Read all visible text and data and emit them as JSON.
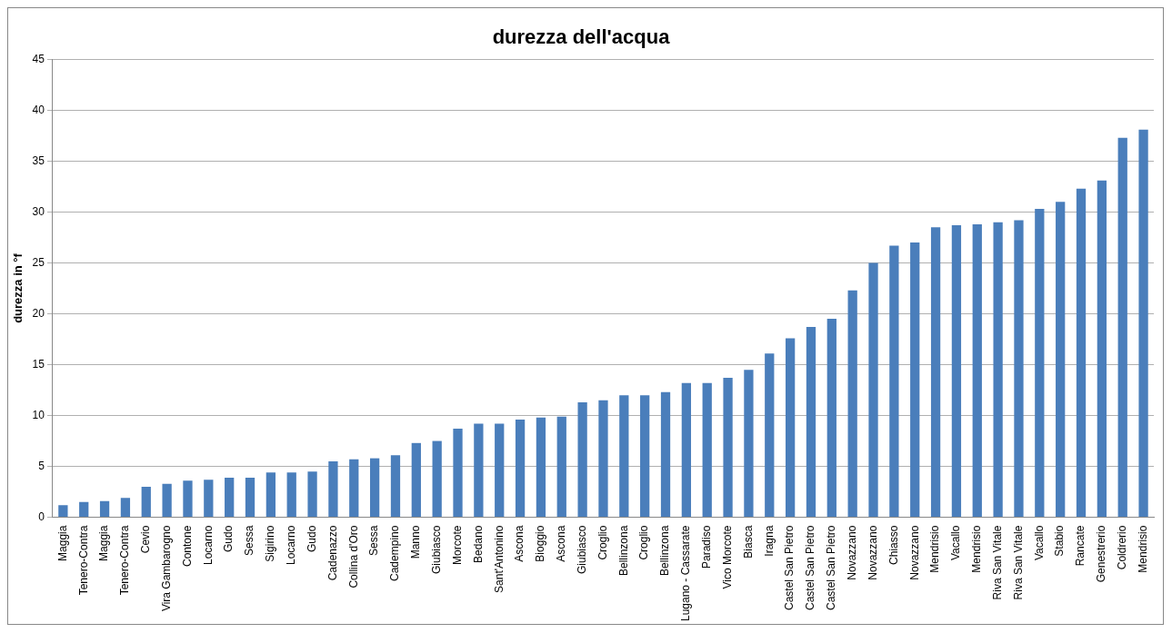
{
  "chart_data": {
    "type": "bar",
    "title": "durezza dell'acqua",
    "ylabel": "durezza in °f",
    "categories": [
      "Maggia",
      "Tenero-Contra",
      "Maggia",
      "Tenero-Contra",
      "Cevio",
      "Vira Gambarogno",
      "Contone",
      "Locarno",
      "Gudo",
      "Sessa",
      "Sigirino",
      "Locarno",
      "Gudo",
      "Cadenazzo",
      "Collina d'Oro",
      "Sessa",
      "Cadempino",
      "Manno",
      "Giubiasco",
      "Morcote",
      "Bedano",
      "Sant'Antonino",
      "Ascona",
      "Bioggio",
      "Ascona",
      "Giubiasco",
      "Croglio",
      "Bellinzona",
      "Croglio",
      "Bellinzona",
      "Lugano - Cassarate",
      "Paradiso",
      "Vico Morcote",
      "Biasca",
      "Iragna",
      "Castel San Pietro",
      "Castel San Pietro",
      "Castel San Pietro",
      "Novazzano",
      "Novazzano",
      "Chiasso",
      "Novazzano",
      "Mendrisio",
      "Vacallo",
      "Mendrisio",
      "Riva San Vitale",
      "Riva San Vitale",
      "Vacallo",
      "Stabio",
      "Rancate",
      "Genestrerio",
      "Coldrerio",
      "Mendrisio"
    ],
    "values": [
      1.2,
      1.5,
      1.6,
      1.9,
      3.0,
      3.3,
      3.6,
      3.7,
      3.9,
      3.9,
      4.4,
      4.4,
      4.5,
      5.5,
      5.7,
      5.8,
      6.1,
      7.3,
      7.5,
      8.7,
      9.2,
      9.2,
      9.6,
      9.8,
      9.9,
      11.3,
      11.5,
      12.0,
      12.0,
      12.3,
      13.2,
      13.2,
      13.7,
      14.5,
      16.1,
      17.6,
      18.7,
      19.5,
      22.3,
      25.0,
      26.7,
      27.0,
      28.5,
      28.7,
      28.8,
      29.0,
      29.2,
      30.3,
      31.0,
      32.3,
      33.1,
      37.3,
      38.1
    ],
    "color": "#4a7ebb",
    "ylim": [
      0,
      45
    ],
    "yticks": [
      0,
      5,
      10,
      15,
      20,
      25,
      30,
      35,
      40,
      45
    ],
    "grid": "y",
    "legend": false
  }
}
